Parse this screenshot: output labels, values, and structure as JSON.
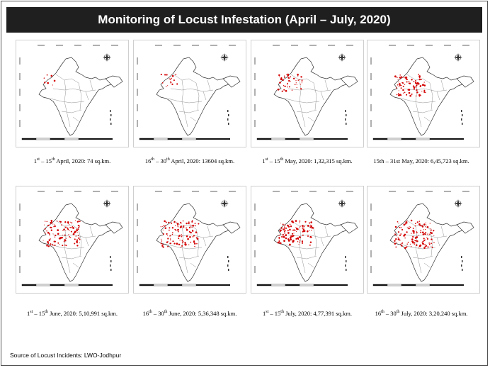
{
  "title": "Monitoring of Locust Infestation (April – July, 2020)",
  "panels": [
    {
      "pre": "1",
      "pre_sup": "st",
      "mid": " – 15",
      "mid_sup": "th",
      "post": " April, 2020: 74 sq.km.",
      "intensity": 0.05
    },
    {
      "pre": "16",
      "pre_sup": "th",
      "mid": " – 30",
      "mid_sup": "th",
      "post": " April, 2020: 13604 sq.km.",
      "intensity": 0.12
    },
    {
      "pre": "1",
      "pre_sup": "st",
      "mid": " – 15",
      "mid_sup": "th",
      "post": " May, 2020: 1,32,315 sq.km.",
      "intensity": 0.35
    },
    {
      "pre": "15th – 31st May, 2020: 6,45,723 sq.km.",
      "pre_sup": "",
      "mid": "",
      "mid_sup": "",
      "post": "",
      "intensity": 0.6
    },
    {
      "pre": "1",
      "pre_sup": "st",
      "mid": " – 15",
      "mid_sup": "th",
      "post": " June, 2020: 5,10,991 sq.km.",
      "intensity": 0.8
    },
    {
      "pre": "16",
      "pre_sup": "th",
      "mid": " – 30",
      "mid_sup": "th",
      "post": " June, 2020: 5,36,348 sq.km.",
      "intensity": 0.85
    },
    {
      "pre": "1",
      "pre_sup": "st",
      "mid": " – 15",
      "mid_sup": "th",
      "post": " July, 2020: 4,77,391 sq.km.",
      "intensity": 0.75
    },
    {
      "pre": "16",
      "pre_sup": "th",
      "mid": " – 30",
      "mid_sup": "th",
      "post": " July, 2020: 3,20,240 sq.km.",
      "intensity": 0.9
    }
  ],
  "source": "Source of Locust  Incidents:  LWO-Jodhpur",
  "colors": {
    "infestation": "#d40000",
    "title_bg": "#1f1f1f"
  },
  "icons": {
    "compass": "north-arrow-icon"
  }
}
